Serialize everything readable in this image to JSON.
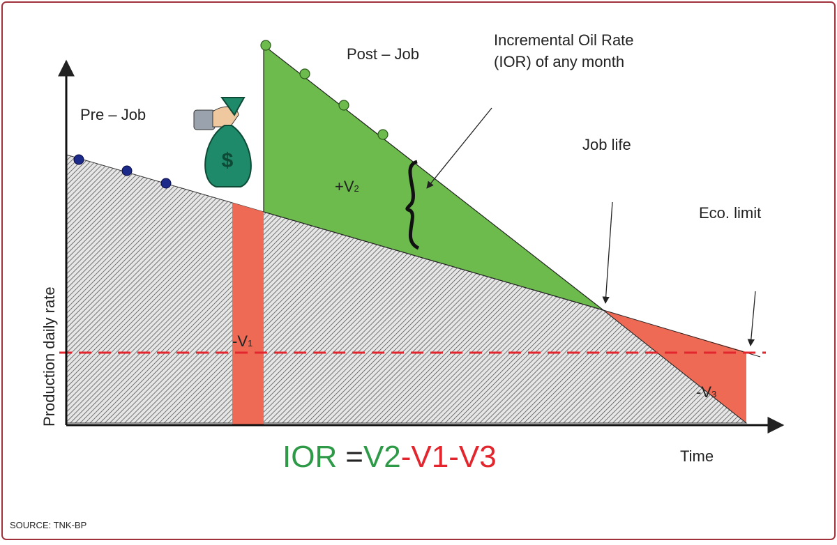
{
  "labels": {
    "pre_job": "Pre – Job",
    "post_job": "Post – Job",
    "ior_line1": "Incremental Oil Rate",
    "ior_line2": "(IOR) of any month",
    "job_life": "Job life",
    "eco_limit": "Eco. limit",
    "v2": {
      "main": "+V",
      "sub": "2"
    },
    "v1": {
      "main": "-V",
      "sub": "1"
    },
    "v3": {
      "main": "-V",
      "sub": "3"
    }
  },
  "axes": {
    "y_label": "Production daily rate",
    "x_label": "Time"
  },
  "formula": {
    "lhs": "IOR",
    "eq": "=",
    "plus": "V2",
    "minus": "-V1-V3"
  },
  "source": "SOURCE: TNK-BP"
}
